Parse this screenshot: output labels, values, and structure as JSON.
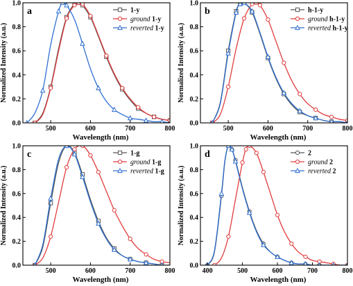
{
  "figure": {
    "background": "#ffffff",
    "axis_color": "#000000"
  },
  "chart_data": [
    {
      "panel": "a",
      "type": "line",
      "xlabel": "Wavelength (nm)",
      "ylabel": "Normalized Intensity (a.u.)",
      "xlim": [
        430,
        800
      ],
      "ylim": [
        0,
        1.0
      ],
      "xticks": [
        500,
        600,
        700,
        800
      ],
      "yticks": [
        0.0,
        0.2,
        0.4,
        0.6,
        0.8,
        1.0
      ],
      "legend_position": "top-right",
      "series": [
        {
          "name": "1-y",
          "label_plain": "",
          "label_bold": "1-y",
          "color": "#555555",
          "marker": "square",
          "x": [
            460,
            480,
            500,
            520,
            540,
            560,
            570,
            580,
            600,
            620,
            640,
            660,
            680,
            700,
            720,
            740,
            760,
            780,
            800
          ],
          "y": [
            0.0,
            0.08,
            0.3,
            0.62,
            0.88,
            0.99,
            1.0,
            0.98,
            0.88,
            0.72,
            0.55,
            0.4,
            0.28,
            0.19,
            0.12,
            0.08,
            0.05,
            0.03,
            0.02
          ]
        },
        {
          "name": "ground 1-y",
          "label_plain": "ground",
          "label_bold": "1-y",
          "color": "#e03c3c",
          "marker": "circle",
          "x": [
            460,
            480,
            500,
            520,
            540,
            560,
            570,
            580,
            600,
            620,
            640,
            660,
            680,
            700,
            720,
            740,
            760,
            780,
            800
          ],
          "y": [
            0.0,
            0.07,
            0.29,
            0.6,
            0.87,
            0.98,
            1.0,
            0.99,
            0.89,
            0.73,
            0.56,
            0.41,
            0.29,
            0.2,
            0.13,
            0.08,
            0.05,
            0.03,
            0.02
          ]
        },
        {
          "name": "reverted 1-y",
          "label_plain": "reverted",
          "label_bold": "1-y",
          "color": "#2e6fd1",
          "marker": "triangle",
          "x": [
            440,
            460,
            480,
            500,
            520,
            530,
            540,
            560,
            580,
            600,
            620,
            640,
            660,
            680,
            700,
            720,
            740,
            760,
            780,
            800
          ],
          "y": [
            0.0,
            0.08,
            0.27,
            0.65,
            0.93,
            1.0,
            0.98,
            0.86,
            0.66,
            0.45,
            0.29,
            0.18,
            0.11,
            0.07,
            0.04,
            0.03,
            0.02,
            0.01,
            0.01,
            0.0
          ]
        }
      ]
    },
    {
      "panel": "b",
      "type": "line",
      "xlabel": "Wavelength (nm)",
      "ylabel": "Normalized Intensity (a.u.)",
      "xlim": [
        430,
        800
      ],
      "ylim": [
        0,
        1.0
      ],
      "xticks": [
        500,
        600,
        700,
        800
      ],
      "yticks": [
        0.0,
        0.2,
        0.4,
        0.6,
        0.8,
        1.0
      ],
      "legend_position": "top-right",
      "series": [
        {
          "name": "h-1-y",
          "label_plain": "",
          "label_bold": "h-1-y",
          "color": "#555555",
          "marker": "square",
          "x": [
            460,
            480,
            500,
            520,
            530,
            540,
            560,
            580,
            600,
            620,
            640,
            660,
            680,
            700,
            720,
            740,
            760,
            780,
            800
          ],
          "y": [
            0.0,
            0.17,
            0.6,
            0.93,
            0.99,
            1.0,
            0.92,
            0.74,
            0.54,
            0.37,
            0.24,
            0.15,
            0.09,
            0.06,
            0.04,
            0.02,
            0.01,
            0.01,
            0.0
          ]
        },
        {
          "name": "ground h-1-y",
          "label_plain": "ground",
          "label_bold": "h-1-y",
          "color": "#e03c3c",
          "marker": "circle",
          "x": [
            460,
            480,
            500,
            520,
            540,
            560,
            570,
            580,
            600,
            620,
            640,
            660,
            680,
            700,
            720,
            740,
            760,
            780,
            800
          ],
          "y": [
            0.0,
            0.07,
            0.3,
            0.62,
            0.87,
            0.99,
            1.0,
            0.98,
            0.86,
            0.68,
            0.5,
            0.35,
            0.24,
            0.16,
            0.11,
            0.07,
            0.05,
            0.03,
            0.02
          ]
        },
        {
          "name": "reverted h-1-y",
          "label_plain": "reverted",
          "label_bold": "h-1-y",
          "color": "#2e6fd1",
          "marker": "triangle",
          "x": [
            460,
            480,
            500,
            520,
            530,
            540,
            560,
            580,
            600,
            620,
            640,
            660,
            680,
            700,
            720,
            740,
            760,
            780,
            800
          ],
          "y": [
            0.0,
            0.16,
            0.58,
            0.92,
            0.99,
            1.0,
            0.93,
            0.75,
            0.55,
            0.38,
            0.25,
            0.16,
            0.1,
            0.06,
            0.04,
            0.02,
            0.01,
            0.01,
            0.0
          ]
        }
      ]
    },
    {
      "panel": "c",
      "type": "line",
      "xlabel": "Wavelength (nm)",
      "ylabel": "Normalized Intensity (a.u.)",
      "xlim": [
        430,
        800
      ],
      "ylim": [
        0,
        1.0
      ],
      "xticks": [
        500,
        600,
        700,
        800
      ],
      "yticks": [
        0.0,
        0.2,
        0.4,
        0.6,
        0.8,
        1.0
      ],
      "legend_position": "top-right",
      "series": [
        {
          "name": "1-g",
          "label_plain": "",
          "label_bold": "1-g",
          "color": "#555555",
          "marker": "square",
          "x": [
            460,
            480,
            500,
            520,
            540,
            560,
            580,
            600,
            620,
            640,
            660,
            680,
            700,
            720,
            740,
            760,
            780,
            800
          ],
          "y": [
            0.0,
            0.15,
            0.52,
            0.86,
            1.0,
            0.94,
            0.76,
            0.55,
            0.37,
            0.23,
            0.14,
            0.08,
            0.05,
            0.03,
            0.02,
            0.01,
            0.0,
            0.0
          ]
        },
        {
          "name": "ground 1-g",
          "label_plain": "ground",
          "label_bold": "1-g",
          "color": "#e03c3c",
          "marker": "circle",
          "x": [
            460,
            480,
            500,
            520,
            540,
            560,
            580,
            600,
            620,
            640,
            660,
            680,
            700,
            720,
            740,
            760,
            780,
            800
          ],
          "y": [
            0.0,
            0.06,
            0.24,
            0.53,
            0.82,
            0.97,
            1.0,
            0.92,
            0.78,
            0.62,
            0.46,
            0.33,
            0.22,
            0.14,
            0.09,
            0.05,
            0.03,
            0.02
          ]
        },
        {
          "name": "reverted 1-g",
          "label_plain": "reverted",
          "label_bold": "1-g",
          "color": "#2e6fd1",
          "marker": "triangle",
          "x": [
            460,
            480,
            500,
            520,
            540,
            560,
            580,
            600,
            620,
            640,
            660,
            680,
            700,
            720,
            740,
            760,
            780,
            800
          ],
          "y": [
            0.0,
            0.17,
            0.56,
            0.89,
            1.0,
            0.93,
            0.74,
            0.53,
            0.35,
            0.22,
            0.13,
            0.08,
            0.05,
            0.03,
            0.02,
            0.01,
            0.0,
            0.0
          ]
        }
      ]
    },
    {
      "panel": "d",
      "type": "line",
      "xlabel": "Wavelength (nm)",
      "ylabel": "Normalized Intensity (a.u.)",
      "xlim": [
        380,
        800
      ],
      "ylim": [
        0,
        1.0
      ],
      "xticks": [
        400,
        500,
        600,
        700,
        800
      ],
      "yticks": [
        0.0,
        0.2,
        0.4,
        0.6,
        0.8,
        1.0
      ],
      "legend_position": "top-right",
      "series": [
        {
          "name": "2",
          "label_plain": "",
          "label_bold": "2",
          "color": "#555555",
          "marker": "circle",
          "x": [
            400,
            420,
            440,
            450,
            460,
            470,
            480,
            500,
            520,
            540,
            560,
            580,
            600,
            620,
            640,
            660,
            680,
            700,
            720,
            740,
            760,
            780,
            800
          ],
          "y": [
            0.0,
            0.11,
            0.58,
            0.87,
            1.0,
            0.97,
            0.88,
            0.65,
            0.45,
            0.29,
            0.18,
            0.11,
            0.07,
            0.04,
            0.02,
            0.01,
            0.01,
            0.0,
            0.0,
            0.0,
            0.0,
            0.0,
            0.0
          ]
        },
        {
          "name": "ground 2",
          "label_plain": "ground",
          "label_bold": "2",
          "color": "#e03c3c",
          "marker": "circle",
          "x": [
            420,
            440,
            460,
            480,
            500,
            510,
            520,
            540,
            560,
            580,
            600,
            620,
            640,
            660,
            680,
            700,
            720,
            740,
            760,
            780,
            800
          ],
          "y": [
            0.0,
            0.06,
            0.24,
            0.55,
            0.86,
            0.97,
            1.0,
            0.94,
            0.78,
            0.6,
            0.42,
            0.28,
            0.18,
            0.11,
            0.07,
            0.04,
            0.03,
            0.02,
            0.01,
            0.0,
            0.0
          ]
        },
        {
          "name": "reverted 2",
          "label_plain": "reverted",
          "label_bold": "2",
          "color": "#2e6fd1",
          "marker": "triangle",
          "x": [
            400,
            420,
            440,
            450,
            460,
            470,
            480,
            500,
            520,
            540,
            560,
            580,
            600,
            620,
            640,
            660,
            680,
            700,
            720,
            740,
            760,
            780,
            800
          ],
          "y": [
            0.0,
            0.12,
            0.6,
            0.88,
            1.0,
            0.97,
            0.87,
            0.64,
            0.44,
            0.28,
            0.17,
            0.11,
            0.07,
            0.04,
            0.02,
            0.01,
            0.01,
            0.0,
            0.0,
            0.0,
            0.0,
            0.0,
            0.0
          ]
        }
      ]
    }
  ]
}
